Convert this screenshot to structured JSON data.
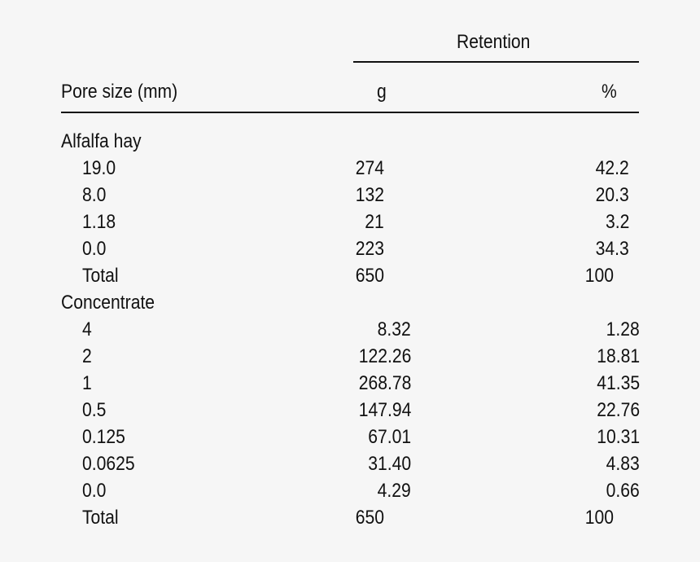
{
  "table": {
    "header": {
      "spanner": "Retention",
      "col_pore": "Pore size (mm)",
      "col_g": "g",
      "col_pct": "%"
    },
    "groups": [
      {
        "name": "Alfalfa hay",
        "rows": [
          {
            "pore": "19.0",
            "g": "274",
            "pct": "42.2"
          },
          {
            "pore": "8.0",
            "g": "132",
            "pct": "20.3"
          },
          {
            "pore": "1.18",
            "g": "21",
            "pct": "3.2"
          },
          {
            "pore": "0.0",
            "g": "223",
            "pct": "34.3"
          },
          {
            "pore": "Total",
            "g": "650",
            "pct": "100"
          }
        ]
      },
      {
        "name": "Concentrate",
        "rows": [
          {
            "pore": "4",
            "g": "8.32",
            "pct": "1.28"
          },
          {
            "pore": "2",
            "g": "122.26",
            "pct": "18.81"
          },
          {
            "pore": "1",
            "g": "268.78",
            "pct": "41.35"
          },
          {
            "pore": "0.5",
            "g": "147.94",
            "pct": "22.76"
          },
          {
            "pore": "0.125",
            "g": "67.01",
            "pct": "10.31"
          },
          {
            "pore": "0.0625",
            "g": "31.40",
            "pct": "4.83"
          },
          {
            "pore": "0.0",
            "g": "4.29",
            "pct": "0.66"
          },
          {
            "pore": "Total",
            "g": "650",
            "pct": "100"
          }
        ]
      }
    ]
  }
}
